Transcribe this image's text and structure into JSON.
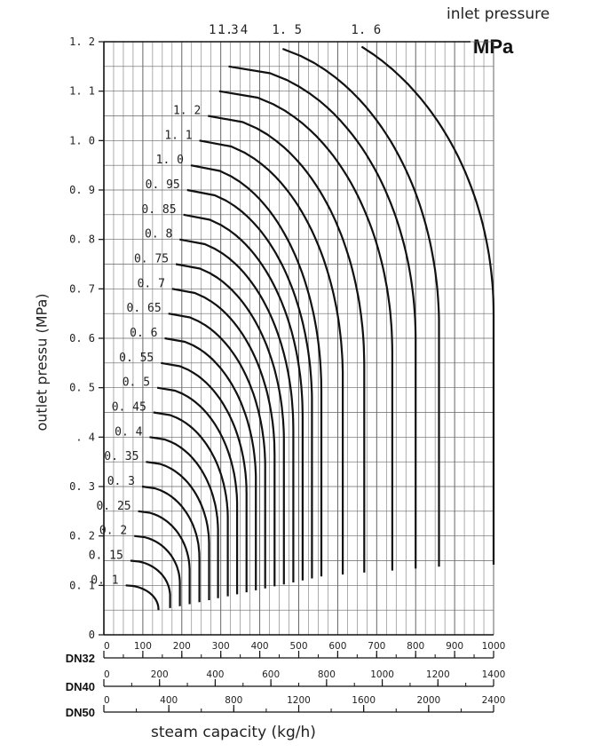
{
  "chart_data": {
    "type": "line",
    "title": "inlet pressure",
    "unit_label": "MPa",
    "ylabel": "outlet pressu (MPa)",
    "xlabel": "steam capacity  (kg/h)",
    "xlim": [
      0,
      1000
    ],
    "ylim": [
      0,
      1.2
    ],
    "grid": true,
    "y_ticks": [
      "0",
      "0. 1",
      "0. 2",
      "0. 3",
      ". 4",
      "0. 5",
      "0. 6",
      "0. 7",
      "0. 8",
      "0. 9",
      "1. 0",
      "1. 1",
      "1. 2"
    ],
    "x_scales": [
      {
        "name": "DN32",
        "max": 1000,
        "ticks": [
          "0",
          "100",
          "200",
          "300",
          "400",
          "500",
          "600",
          "700",
          "800",
          "900",
          "1000"
        ]
      },
      {
        "name": "DN40",
        "max": 1400,
        "ticks": [
          "0",
          "200",
          "400",
          "600",
          "800",
          "1000",
          "1200",
          "1400"
        ]
      },
      {
        "name": "DN50",
        "max": 2400,
        "ticks": [
          "0",
          "400",
          "800",
          "1200",
          "1600",
          "2000",
          "2400"
        ]
      }
    ],
    "series": [
      {
        "name": "0. 1",
        "inlet_label": "0. 1",
        "max_flow": 140,
        "label_pos": "left"
      },
      {
        "name": "0. 15",
        "inlet_label": "0. 15",
        "max_flow": 170,
        "label_pos": "left"
      },
      {
        "name": "0. 2",
        "inlet_label": "0. 2",
        "max_flow": 195,
        "label_pos": "left"
      },
      {
        "name": "0. 25",
        "inlet_label": "0. 25",
        "max_flow": 220,
        "label_pos": "left"
      },
      {
        "name": "0. 3",
        "inlet_label": "0. 3",
        "max_flow": 245,
        "label_pos": "left"
      },
      {
        "name": "0. 35",
        "inlet_label": "0. 35",
        "max_flow": 270,
        "label_pos": "left"
      },
      {
        "name": "0. 4",
        "inlet_label": "0. 4",
        "max_flow": 293,
        "label_pos": "left"
      },
      {
        "name": "0. 45",
        "inlet_label": "0. 45",
        "max_flow": 318,
        "label_pos": "left"
      },
      {
        "name": "0. 5",
        "inlet_label": "0. 5",
        "max_flow": 342,
        "label_pos": "left"
      },
      {
        "name": "0. 55",
        "inlet_label": "0. 55",
        "max_flow": 366,
        "label_pos": "left"
      },
      {
        "name": "0. 6",
        "inlet_label": "0. 6",
        "max_flow": 390,
        "label_pos": "left"
      },
      {
        "name": "0. 65",
        "inlet_label": "0. 65",
        "max_flow": 414,
        "label_pos": "left"
      },
      {
        "name": "0. 7",
        "inlet_label": "0. 7",
        "max_flow": 438,
        "label_pos": "left"
      },
      {
        "name": "0. 75",
        "inlet_label": "0. 75",
        "max_flow": 462,
        "label_pos": "left"
      },
      {
        "name": "0. 8",
        "inlet_label": "0. 8",
        "max_flow": 486,
        "label_pos": "left"
      },
      {
        "name": "0. 85",
        "inlet_label": "0. 85",
        "max_flow": 510,
        "label_pos": "left"
      },
      {
        "name": "0. 95",
        "inlet_label": "0. 95",
        "max_flow": 534,
        "label_pos": "left"
      },
      {
        "name": "1. 0",
        "inlet_label": "1. 0",
        "max_flow": 558,
        "label_pos": "left"
      },
      {
        "name": "1. 1",
        "inlet_label": "1. 1",
        "max_flow": 613,
        "label_pos": "left"
      },
      {
        "name": "1. 2",
        "inlet_label": "1. 2",
        "max_flow": 668,
        "label_pos": "left"
      },
      {
        "name": "1. 3",
        "inlet_label": "1. 3",
        "max_flow": 740,
        "label_pos": "top"
      },
      {
        "name": "1. 4",
        "inlet_label": "1. 4",
        "max_flow": 800,
        "label_pos": "top"
      },
      {
        "name": "1. 5",
        "inlet_label": "1. 5",
        "max_flow": 860,
        "label_pos": "top"
      },
      {
        "name": "1. 6",
        "inlet_label": "1. 6",
        "max_flow": 1000,
        "label_pos": "top"
      }
    ]
  }
}
